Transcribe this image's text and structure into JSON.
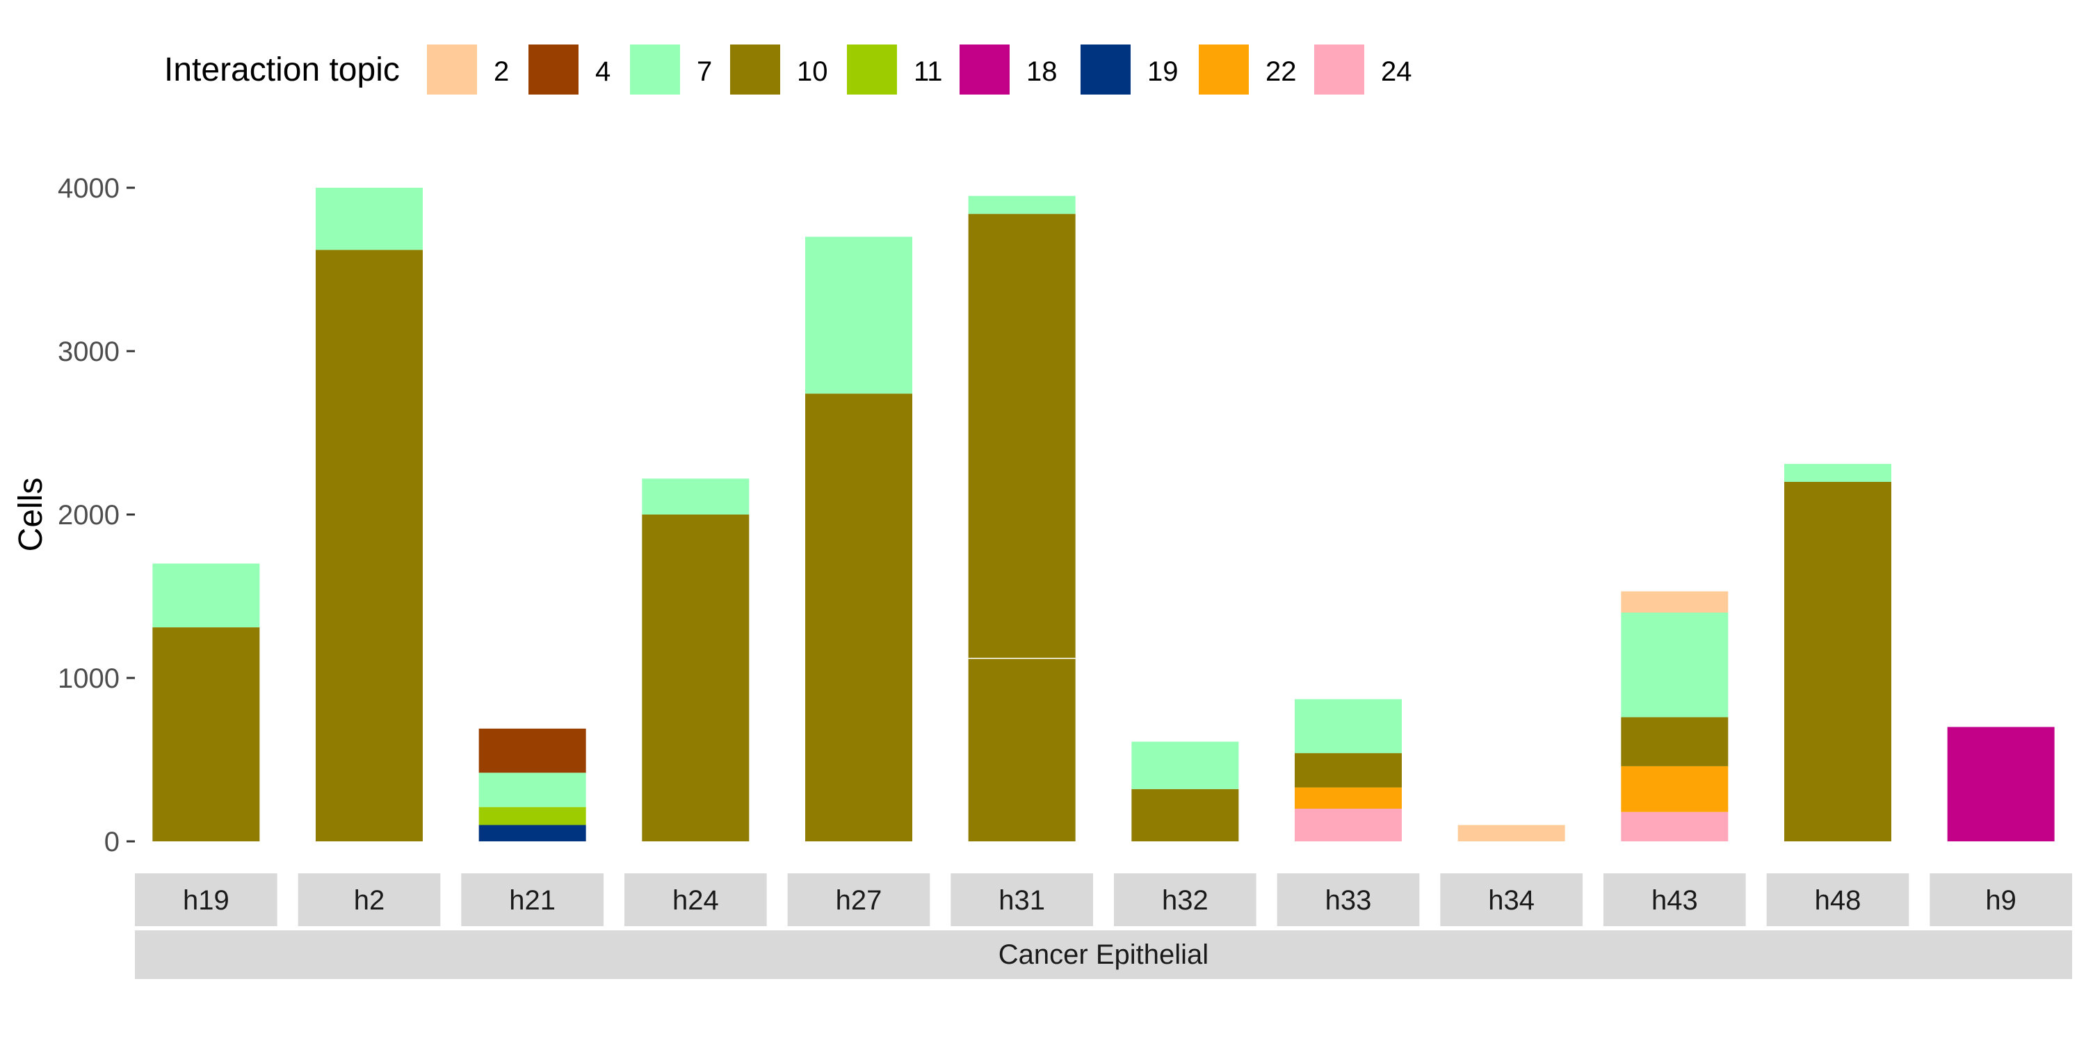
{
  "chart_data": {
    "type": "bar",
    "stacked": true,
    "ylabel": "Cells",
    "ylim": [
      0,
      4200
    ],
    "yticks": [
      0,
      1000,
      2000,
      3000,
      4000
    ],
    "grid": false,
    "legend": {
      "title": "Interaction topic",
      "position": "top-left",
      "entries": [
        {
          "label": "2",
          "color": "#FFCC99"
        },
        {
          "label": "4",
          "color": "#993F00"
        },
        {
          "label": "7",
          "color": "#94FFB5"
        },
        {
          "label": "10",
          "color": "#8F7C00"
        },
        {
          "label": "11",
          "color": "#9DCC00"
        },
        {
          "label": "18",
          "color": "#C20088"
        },
        {
          "label": "19",
          "color": "#003380"
        },
        {
          "label": "22",
          "color": "#FFA405"
        },
        {
          "label": "24",
          "color": "#FFA8BB"
        }
      ]
    },
    "facet_label": "Cancer Epithelial",
    "categories": [
      "h19",
      "h2",
      "h21",
      "h24",
      "h27",
      "h31",
      "h32",
      "h33",
      "h34",
      "h43",
      "h48",
      "h9"
    ],
    "bars": [
      {
        "category": "h19",
        "segments": [
          {
            "topic": "10",
            "value": 1310
          },
          {
            "topic": "7",
            "value": 390
          }
        ]
      },
      {
        "category": "h2",
        "segments": [
          {
            "topic": "10",
            "value": 3620
          },
          {
            "topic": "7",
            "value": 380
          }
        ]
      },
      {
        "category": "h21",
        "segments": [
          {
            "topic": "19",
            "value": 100
          },
          {
            "topic": "11",
            "value": 110
          },
          {
            "topic": "7",
            "value": 210
          },
          {
            "topic": "4",
            "value": 270
          }
        ]
      },
      {
        "category": "h24",
        "segments": [
          {
            "topic": "10",
            "value": 2000
          },
          {
            "topic": "7",
            "value": 220
          }
        ]
      },
      {
        "category": "h27",
        "segments": [
          {
            "topic": "10",
            "value": 2740
          },
          {
            "topic": "7",
            "value": 960
          }
        ]
      },
      {
        "category": "h31",
        "segments": [
          {
            "topic": "10",
            "value": 1120
          },
          {
            "topic": "10",
            "value": 2720
          },
          {
            "topic": "7",
            "value": 110
          }
        ]
      },
      {
        "category": "h32",
        "segments": [
          {
            "topic": "10",
            "value": 320
          },
          {
            "topic": "7",
            "value": 290
          }
        ]
      },
      {
        "category": "h33",
        "segments": [
          {
            "topic": "24",
            "value": 200
          },
          {
            "topic": "22",
            "value": 130
          },
          {
            "topic": "10",
            "value": 210
          },
          {
            "topic": "7",
            "value": 330
          }
        ]
      },
      {
        "category": "h34",
        "segments": [
          {
            "topic": "2",
            "value": 100
          }
        ]
      },
      {
        "category": "h43",
        "segments": [
          {
            "topic": "24",
            "value": 180
          },
          {
            "topic": "22",
            "value": 280
          },
          {
            "topic": "10",
            "value": 300
          },
          {
            "topic": "7",
            "value": 640
          },
          {
            "topic": "2",
            "value": 130
          }
        ]
      },
      {
        "category": "h48",
        "segments": [
          {
            "topic": "10",
            "value": 2200
          },
          {
            "topic": "7",
            "value": 110
          }
        ]
      },
      {
        "category": "h9",
        "segments": [
          {
            "topic": "18",
            "value": 700
          }
        ]
      }
    ]
  }
}
